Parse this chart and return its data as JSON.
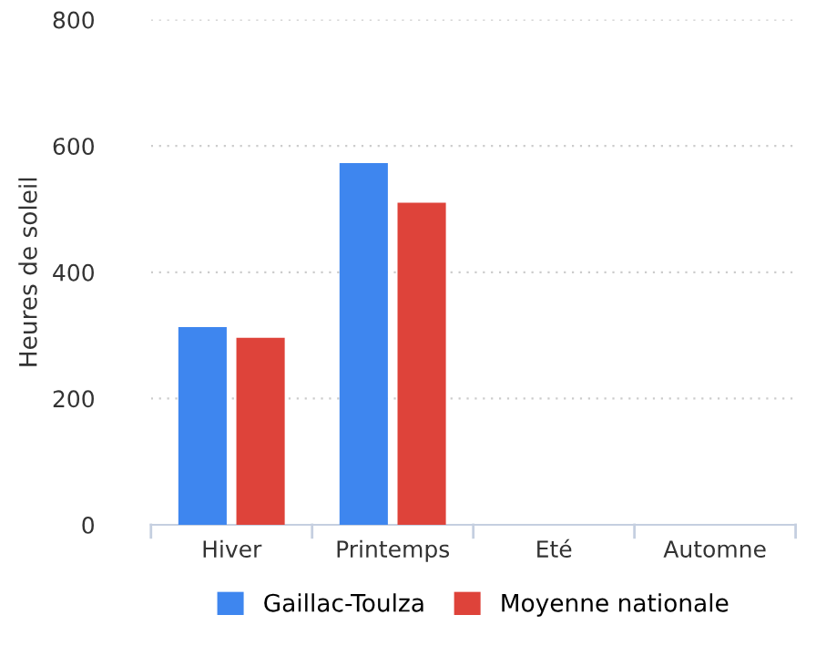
{
  "chart_data": {
    "type": "bar",
    "ylabel": "Heures de soleil",
    "categories": [
      "Hiver",
      "Printemps",
      "Eté",
      "Automne"
    ],
    "series": [
      {
        "name": "Gaillac-Toulza",
        "color": "#3e86ef",
        "values": [
          313,
          573,
          null,
          null
        ]
      },
      {
        "name": "Moyenne nationale",
        "color": "#de433a",
        "values": [
          296,
          510,
          null,
          null
        ]
      }
    ],
    "ylim": [
      0,
      800
    ],
    "yticks": [
      0,
      200,
      400,
      600,
      800
    ],
    "grid": "y",
    "legend": "bottom"
  }
}
